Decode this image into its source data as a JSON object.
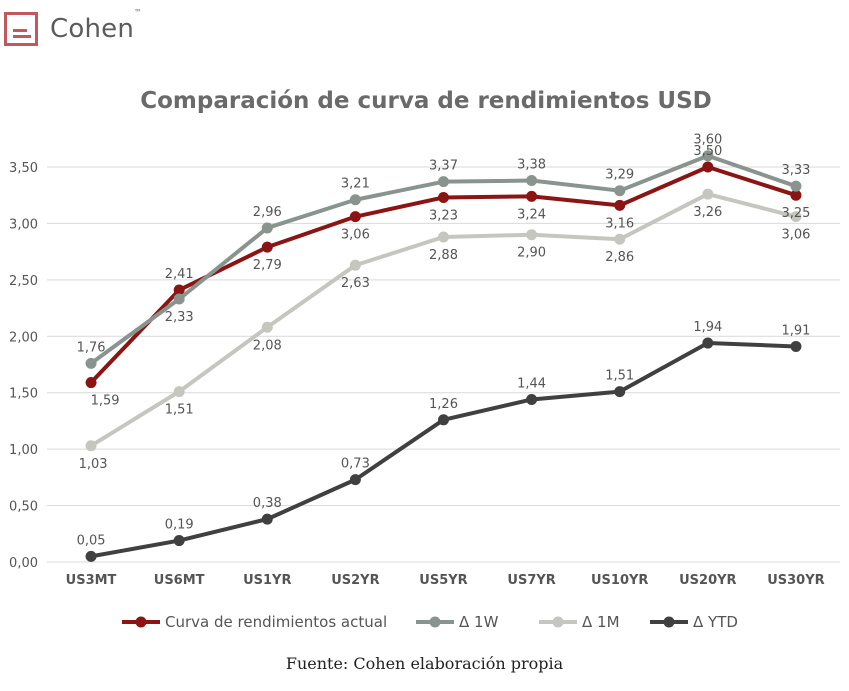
{
  "brand": {
    "name": "Cohen",
    "tm": "™"
  },
  "source": "Fuente: Cohen elaboración propia",
  "chart_data": {
    "type": "line",
    "title": "Comparación de curva de rendimientos USD",
    "xlabel": "",
    "ylabel": "",
    "ylim": [
      0,
      3.5
    ],
    "yticks": [
      "0,00",
      "0,50",
      "1,00",
      "1,50",
      "2,00",
      "2,50",
      "3,00",
      "3,50"
    ],
    "categories": [
      "US3MT",
      "US6MT",
      "US1YR",
      "US2YR",
      "US5YR",
      "US7YR",
      "US10YR",
      "US20YR",
      "US30YR"
    ],
    "grid": true,
    "legend_position": "bottom",
    "series": [
      {
        "name": "Curva de rendimientos actual",
        "color": "#8b1515",
        "values": [
          1.59,
          2.41,
          2.79,
          3.06,
          3.23,
          3.24,
          3.16,
          3.5,
          3.25
        ],
        "labels": [
          "1,59",
          "2,41",
          "2,79",
          "3,06",
          "3,23",
          "3,24",
          "3,16",
          "3,50",
          "3,25"
        ]
      },
      {
        "name": "Δ 1W",
        "color": "#8a948e",
        "values": [
          1.76,
          2.33,
          2.96,
          3.21,
          3.37,
          3.38,
          3.29,
          3.6,
          3.33
        ],
        "labels": [
          "1,76",
          "2,33",
          "2,96",
          "3,21",
          "3,37",
          "3,38",
          "3,29",
          "3,60",
          "3,33"
        ]
      },
      {
        "name": "Δ 1M",
        "color": "#c6c6c0",
        "values": [
          1.03,
          1.51,
          2.08,
          2.63,
          2.88,
          2.9,
          2.86,
          3.26,
          3.06
        ],
        "labels": [
          "1,03",
          "1,51",
          "2,08",
          "2,63",
          "2,88",
          "2,90",
          "2,86",
          "3,26",
          "3,06"
        ]
      },
      {
        "name": "Δ YTD",
        "color": "#404040",
        "values": [
          0.05,
          0.19,
          0.38,
          0.73,
          1.26,
          1.44,
          1.51,
          1.94,
          1.91
        ],
        "labels": [
          "0,05",
          "0,19",
          "0,38",
          "0,73",
          "1,26",
          "1,44",
          "1,51",
          "1,94",
          "1,91"
        ]
      }
    ]
  }
}
